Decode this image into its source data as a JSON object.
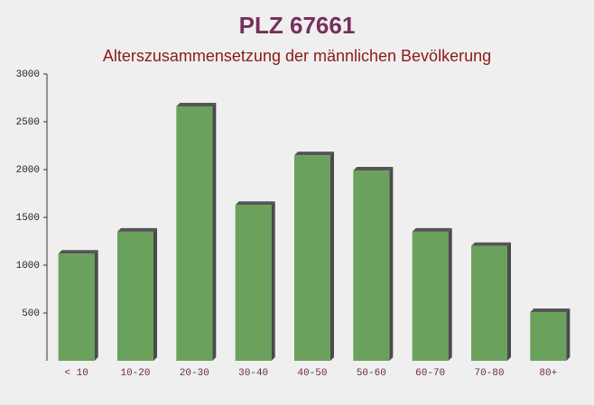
{
  "chart_data": {
    "type": "bar",
    "title": "PLZ 67661",
    "subtitle": "Alterszusammensetzung der männlichen Bevölkerung",
    "categories": [
      "< 10",
      "10-20",
      "20-30",
      "30-40",
      "40-50",
      "50-60",
      "60-70",
      "70-80",
      "80+"
    ],
    "values": [
      1120,
      1350,
      2660,
      1630,
      2150,
      1990,
      1350,
      1200,
      510
    ],
    "color": "#6aa15c",
    "ylim": [
      0,
      3000
    ],
    "yticks": [
      500,
      1000,
      1500,
      2000,
      2500,
      3000
    ]
  }
}
